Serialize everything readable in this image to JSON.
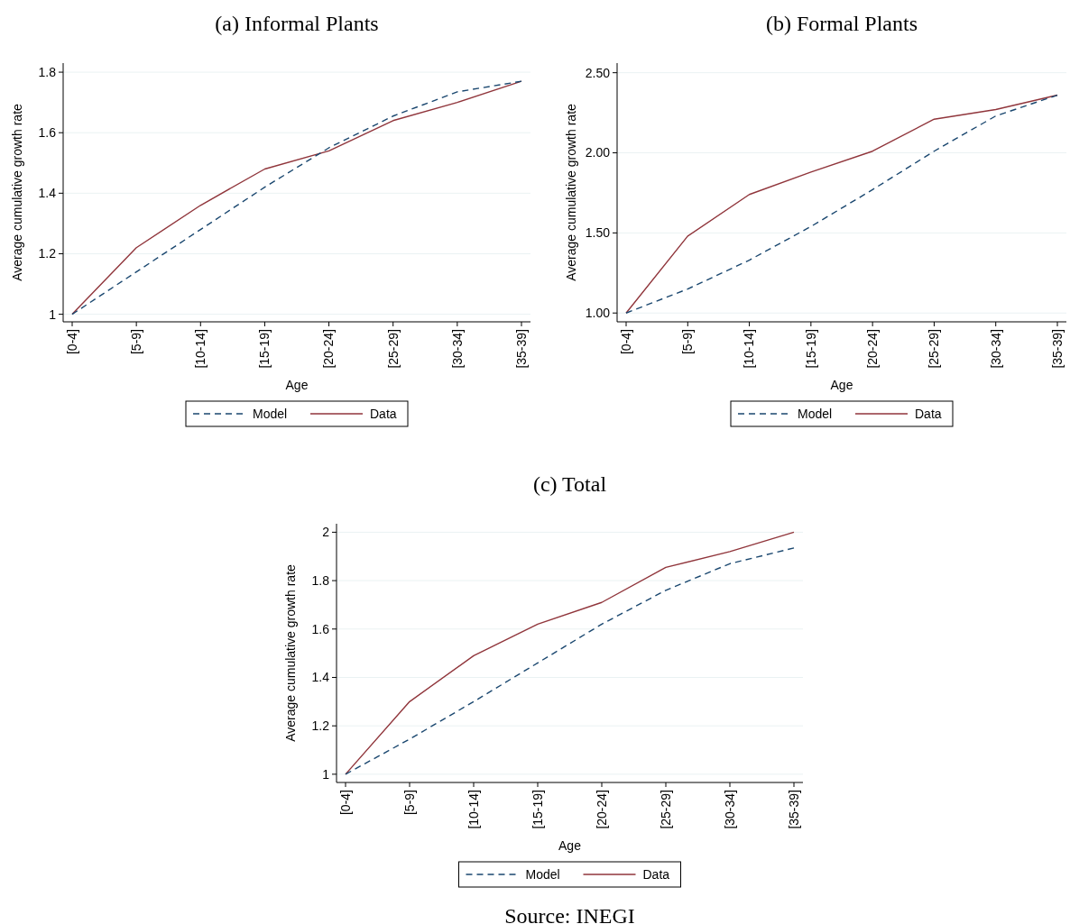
{
  "chart_data": [
    {
      "type": "line",
      "title": "(a) Informal Plants",
      "xlabel": "Age",
      "ylabel": "Average cumulative growth rate",
      "categories": [
        "[0-4]",
        "[5-9]",
        "[10-14]",
        "[15-19]",
        "[20-24]",
        "[25-29]",
        "[30-34]",
        "[35-39]"
      ],
      "series": [
        {
          "name": "Model",
          "color": "#1a476f",
          "line_style": "dashed",
          "values": [
            1,
            1.14,
            1.28,
            1.42,
            1.55,
            1.655,
            1.735,
            1.77
          ]
        },
        {
          "name": "Data",
          "color": "#90353b",
          "line_style": "solid",
          "values": [
            1,
            1.22,
            1.36,
            1.48,
            1.54,
            1.64,
            1.7,
            1.77
          ]
        }
      ],
      "ylim": [
        0.975,
        1.83
      ],
      "yticks": [
        1,
        1.2,
        1.4,
        1.6,
        1.8
      ],
      "grid": "y",
      "legend": "bottom",
      "marker": "none"
    },
    {
      "type": "line",
      "title": "(b) Formal Plants",
      "xlabel": "Age",
      "ylabel": "Average cumulative growth rate",
      "categories": [
        "[0-4]",
        "[5-9]",
        "[10-14]",
        "[15-19]",
        "[20-24]",
        "[25-29]",
        "[30-34]",
        "[35-39]"
      ],
      "series": [
        {
          "name": "Model",
          "color": "#1a476f",
          "line_style": "dashed",
          "values": [
            1,
            1.15,
            1.33,
            1.54,
            1.77,
            2.01,
            2.23,
            2.36
          ]
        },
        {
          "name": "Data",
          "color": "#90353b",
          "line_style": "solid",
          "values": [
            1,
            1.48,
            1.74,
            1.88,
            2.01,
            2.21,
            2.27,
            2.36
          ]
        }
      ],
      "ylim": [
        0.945,
        2.56
      ],
      "yticks": [
        {
          "value": 1,
          "label": "1.00"
        },
        {
          "value": 1.5,
          "label": "1.50"
        },
        {
          "value": 2,
          "label": "2.00"
        },
        {
          "value": 2.5,
          "label": "2.50"
        }
      ],
      "grid": "y",
      "legend": "bottom",
      "marker": "none"
    },
    {
      "type": "line",
      "title": "(c) Total",
      "xlabel": "Age",
      "ylabel": "Average cumulative growth rate",
      "categories": [
        "[0-4]",
        "[5-9]",
        "[10-14]",
        "[15-19]",
        "[20-24]",
        "[25-29]",
        "[30-34]",
        "[35-39]"
      ],
      "series": [
        {
          "name": "Model",
          "color": "#1a476f",
          "line_style": "dashed",
          "values": [
            1,
            1.145,
            1.3,
            1.46,
            1.62,
            1.76,
            1.87,
            1.935
          ]
        },
        {
          "name": "Data",
          "color": "#90353b",
          "line_style": "solid",
          "values": [
            1,
            1.3,
            1.49,
            1.62,
            1.71,
            1.855,
            1.92,
            2.0
          ]
        }
      ],
      "ylim": [
        0.966,
        2.035
      ],
      "yticks": [
        1,
        1.2,
        1.4,
        1.6,
        1.8,
        2
      ],
      "grid": "y",
      "legend": "bottom",
      "marker": "none",
      "annotations": [
        "Source: INEGI"
      ]
    }
  ]
}
